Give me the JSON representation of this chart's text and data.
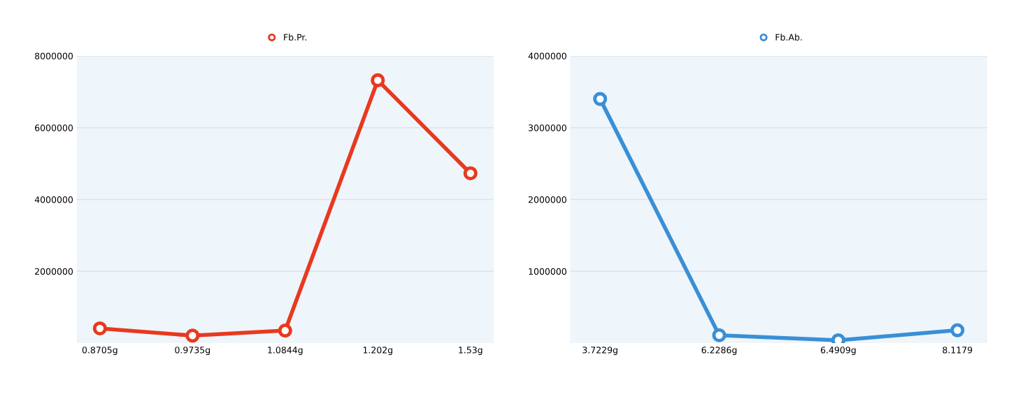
{
  "chart_data": [
    {
      "type": "line",
      "categories": [
        "0.8705g",
        "0.9735g",
        "1.0844g",
        "1.202g",
        "1.53g"
      ],
      "series": [
        {
          "name": "Fb.Pr.",
          "color": "#e8391f",
          "values": [
            410000,
            210000,
            350000,
            7320000,
            4730000
          ]
        }
      ],
      "ylim": [
        0,
        8000000
      ],
      "yticks": [
        2000000,
        4000000,
        6000000,
        8000000
      ],
      "grid": "y",
      "legend": "top",
      "marker": "circle",
      "line_style": "solid"
    },
    {
      "type": "line",
      "categories": [
        "3.7229g",
        "6.2286g",
        "6.4909g",
        "8.1179"
      ],
      "series": [
        {
          "name": "Fb.Ab.",
          "color": "#3a8fd6",
          "values": [
            3400000,
            110000,
            40000,
            180000
          ]
        }
      ],
      "ylim": [
        0,
        4000000
      ],
      "yticks": [
        1000000,
        2000000,
        3000000,
        4000000
      ],
      "grid": "y",
      "legend": "top",
      "marker": "circle",
      "line_style": "solid"
    }
  ]
}
